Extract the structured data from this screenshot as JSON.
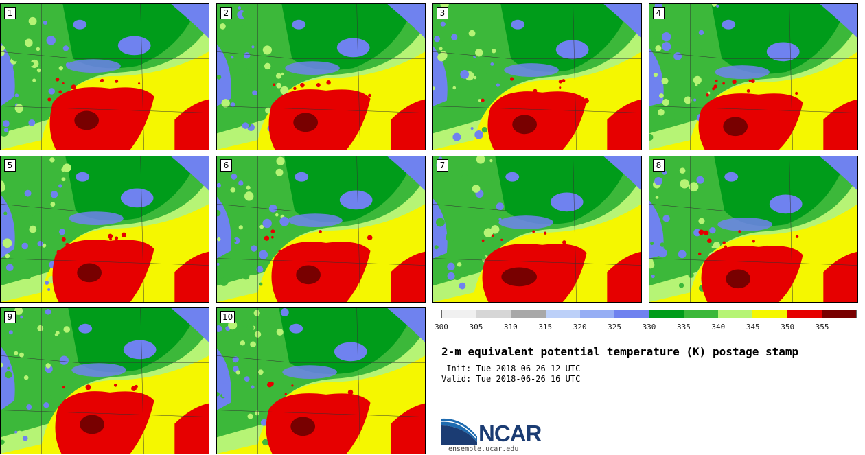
{
  "panels": [
    {
      "label": "1"
    },
    {
      "label": "2"
    },
    {
      "label": "3"
    },
    {
      "label": "4"
    },
    {
      "label": "5"
    },
    {
      "label": "6"
    },
    {
      "label": "7"
    },
    {
      "label": "8"
    },
    {
      "label": "9"
    },
    {
      "label": "10"
    }
  ],
  "colorbar": {
    "colors": [
      "#f0f0f0",
      "#d6d6d6",
      "#a8a8a8",
      "#bcd0f8",
      "#96aef4",
      "#6f82ef",
      "#009c1a",
      "#3cb83a",
      "#b6f475",
      "#f5f700",
      "#e60000",
      "#780000"
    ],
    "labels": [
      "300",
      "305",
      "310",
      "315",
      "320",
      "325",
      "330",
      "335",
      "340",
      "345",
      "350",
      "355"
    ]
  },
  "title": "2-m equivalent potential temperature (K) postage stamp",
  "info": {
    "init": " Init: Tue 2018-06-26 12 UTC",
    "valid": "Valid: Tue 2018-06-26 16 UTC"
  },
  "logo": {
    "text": "NCAR",
    "url": "ensemble.ucar.edu"
  }
}
